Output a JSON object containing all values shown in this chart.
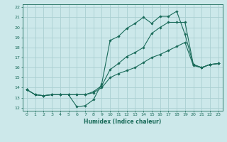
{
  "title": "",
  "xlabel": "Humidex (Indice chaleur)",
  "ylabel": "",
  "xlim": [
    -0.5,
    23.5
  ],
  "ylim": [
    11.7,
    22.3
  ],
  "xticks": [
    0,
    1,
    2,
    3,
    4,
    5,
    6,
    7,
    8,
    9,
    10,
    11,
    12,
    13,
    14,
    15,
    16,
    17,
    18,
    19,
    20,
    21,
    22,
    23
  ],
  "yticks": [
    12,
    13,
    14,
    15,
    16,
    17,
    18,
    19,
    20,
    21,
    22
  ],
  "bg_color": "#cce8ea",
  "line_color": "#1a6b5a",
  "grid_color": "#aacfd2",
  "line1_x": [
    0,
    1,
    2,
    3,
    4,
    5,
    6,
    7,
    8,
    9,
    10,
    11,
    12,
    13,
    14,
    15,
    16,
    17,
    18,
    19,
    20,
    21,
    22,
    23
  ],
  "line1_y": [
    13.8,
    13.3,
    13.2,
    13.3,
    13.3,
    13.3,
    12.1,
    12.2,
    12.8,
    14.4,
    18.7,
    19.1,
    19.9,
    20.4,
    21.0,
    20.4,
    21.1,
    21.1,
    21.6,
    19.3,
    16.3,
    16.0,
    16.3,
    16.4
  ],
  "line2_x": [
    0,
    1,
    2,
    3,
    4,
    5,
    6,
    7,
    8,
    9,
    10,
    11,
    12,
    13,
    14,
    15,
    16,
    17,
    18,
    19,
    20,
    21,
    22,
    23
  ],
  "line2_y": [
    13.8,
    13.3,
    13.2,
    13.3,
    13.3,
    13.3,
    13.3,
    13.3,
    13.5,
    14.0,
    15.0,
    15.4,
    15.7,
    16.0,
    16.5,
    17.0,
    17.3,
    17.7,
    18.1,
    18.5,
    16.2,
    16.0,
    16.3,
    16.4
  ],
  "line3_x": [
    0,
    1,
    2,
    3,
    4,
    5,
    6,
    7,
    8,
    9,
    10,
    11,
    12,
    13,
    14,
    15,
    16,
    17,
    18,
    19,
    20,
    21,
    22,
    23
  ],
  "line3_y": [
    13.8,
    13.3,
    13.2,
    13.3,
    13.3,
    13.3,
    13.3,
    13.3,
    13.6,
    14.2,
    15.8,
    16.4,
    17.1,
    17.5,
    18.0,
    19.4,
    20.0,
    20.5,
    20.5,
    20.5,
    16.3,
    16.0,
    16.3,
    16.4
  ]
}
